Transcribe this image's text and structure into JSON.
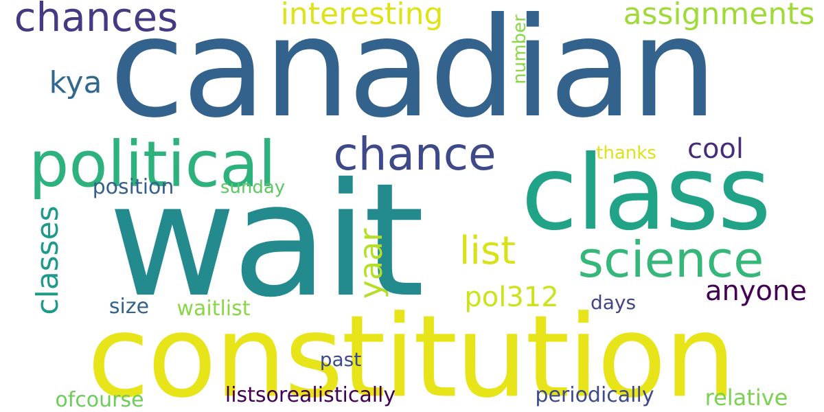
{
  "words": {
    "canadian": "canadian",
    "wait": "wait",
    "constitution": "constitution",
    "class": "class",
    "political": "political",
    "chance": "chance",
    "science": "science",
    "chances": "chances",
    "interesting": "interesting",
    "assignments": "assignments",
    "kya": "kya",
    "list": "list",
    "yaar": "yaar",
    "classes": "classes",
    "anyone": "anyone",
    "pol312": "pol312",
    "cool": "cool",
    "thanks": "thanks",
    "number": "number",
    "position": "position",
    "sunday": "sunday",
    "size": "size",
    "waitlist": "waitlist",
    "days": "days",
    "past": "past",
    "ofcourse": "ofcourse",
    "listsorealistically": "listsorealistically",
    "periodically": "periodically",
    "relative": "relative"
  },
  "colors": {
    "canadian": "#33638d",
    "wait": "#238a8d",
    "constitution": "#e7e419",
    "class": "#20a386",
    "political": "#2db27d",
    "chance": "#3e4989",
    "science": "#35b779",
    "chances": "#443a83",
    "interesting": "#dde318",
    "assignments": "#a0da39",
    "kya": "#31688e",
    "list": "#d8e219",
    "yaar": "#b5de2b",
    "classes": "#1f9a8a",
    "anyone": "#440154",
    "pol312": "#cde11d",
    "cool": "#472c7a",
    "thanks": "#dde318",
    "number": "#8bd646",
    "position": "#355f8d",
    "sunday": "#5ec962",
    "size": "#33638d",
    "waitlist": "#8bd646",
    "days": "#414487",
    "past": "#3e4989",
    "ofcourse": "#6ccd5a",
    "listsorealistically": "#440154",
    "periodically": "#3e4989",
    "relative": "#7ad151"
  }
}
